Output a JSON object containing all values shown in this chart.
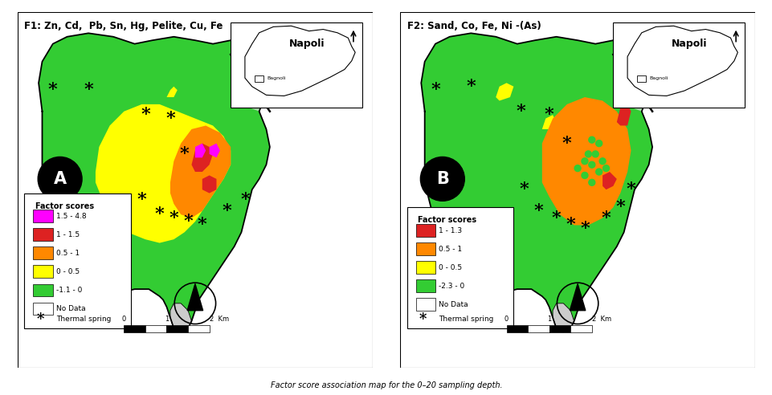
{
  "title_left": "F1: Zn, Cd,  Pb, Sn, Hg, Pelite, Cu, Fe",
  "title_right": "F2: Sand, Co, Fe, Ni -(As)",
  "caption": "Factor score association map for the 0–20 sampling depth.",
  "panel_A": {
    "legend_title": "Factor scores",
    "colors": [
      "#FF00FF",
      "#DD2222",
      "#FF8800",
      "#FFFF00",
      "#33CC33",
      "#FFFFFF"
    ],
    "labels": [
      "1.5 - 4.8",
      "1 - 1.5",
      "0.5 - 1",
      "0 - 0.5",
      "-1.1 - 0",
      "No Data"
    ]
  },
  "panel_B": {
    "legend_title": "Factor scores",
    "colors": [
      "#DD2222",
      "#FF8800",
      "#FFFF00",
      "#33CC33",
      "#FFFFFF"
    ],
    "labels": [
      "1 - 1.3",
      "0.5 - 1",
      "0 - 0.5",
      "-2.3 - 0",
      "No Data"
    ]
  },
  "bg_color": "#FFFFFF",
  "green": "#33CC33",
  "yellow": "#FFFF00",
  "orange": "#FF8800",
  "red": "#DD2222",
  "magenta": "#FF00FF",
  "figsize": [
    9.62,
    4.92
  ],
  "dpi": 100
}
